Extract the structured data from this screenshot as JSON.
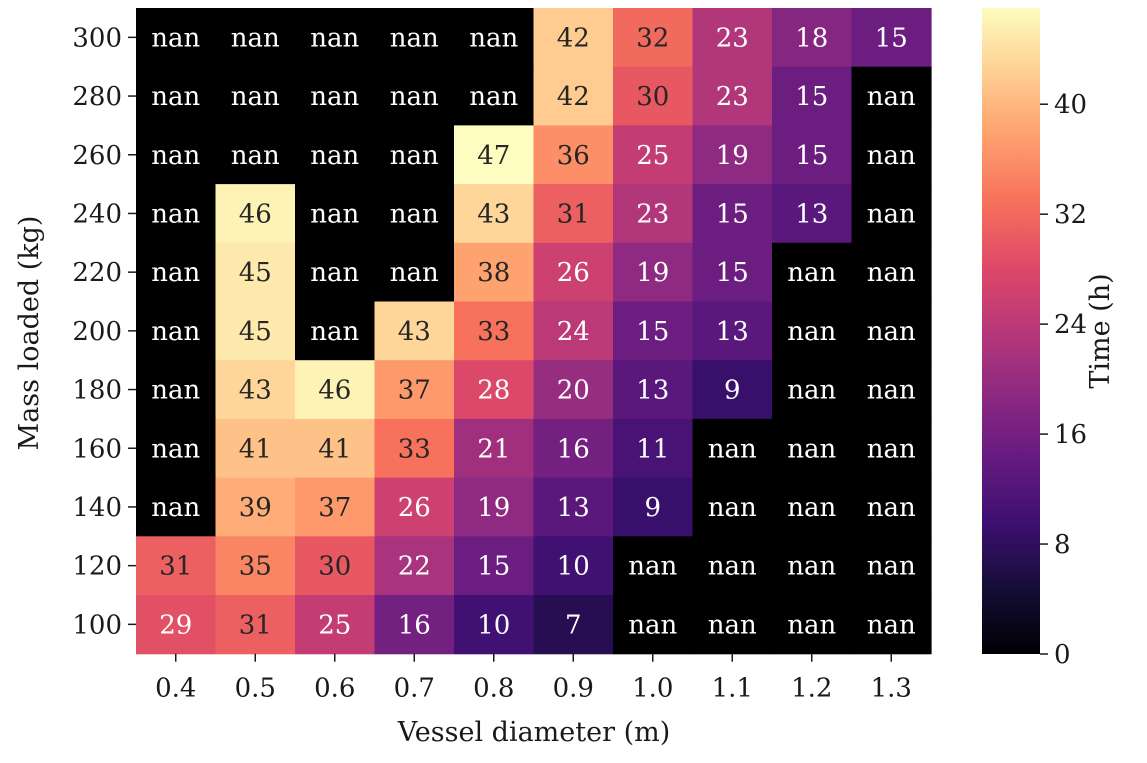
{
  "chart_data": {
    "type": "heatmap",
    "xlabel": "Vessel diameter (m)",
    "ylabel": "Mass loaded (kg)",
    "x_categories": [
      "0.4",
      "0.5",
      "0.6",
      "0.7",
      "0.8",
      "0.9",
      "1.0",
      "1.1",
      "1.2",
      "1.3"
    ],
    "y_categories": [
      "300",
      "280",
      "260",
      "240",
      "220",
      "200",
      "180",
      "160",
      "140",
      "120",
      "100"
    ],
    "values": [
      [
        null,
        null,
        null,
        null,
        null,
        42,
        32,
        23,
        18,
        15
      ],
      [
        null,
        null,
        null,
        null,
        null,
        42,
        30,
        23,
        15,
        null
      ],
      [
        null,
        null,
        null,
        null,
        47,
        36,
        25,
        19,
        15,
        null
      ],
      [
        null,
        46,
        null,
        null,
        43,
        31,
        23,
        15,
        13,
        null
      ],
      [
        null,
        45,
        null,
        null,
        38,
        26,
        19,
        15,
        null,
        null
      ],
      [
        null,
        45,
        null,
        43,
        33,
        24,
        15,
        13,
        null,
        null
      ],
      [
        null,
        43,
        46,
        37,
        28,
        20,
        13,
        9,
        null,
        null
      ],
      [
        null,
        41,
        41,
        33,
        21,
        16,
        11,
        null,
        null,
        null
      ],
      [
        null,
        39,
        37,
        26,
        19,
        13,
        9,
        null,
        null,
        null
      ],
      [
        31,
        35,
        30,
        22,
        15,
        10,
        null,
        null,
        null,
        null
      ],
      [
        29,
        31,
        25,
        16,
        10,
        7,
        null,
        null,
        null,
        null
      ]
    ],
    "missing_label": "nan",
    "colormap": "magma",
    "colorbar": {
      "label": "Time (h)",
      "ticks": [
        0,
        8,
        16,
        24,
        32,
        40
      ],
      "range": [
        0,
        47
      ]
    },
    "nan_color": "#000000"
  }
}
